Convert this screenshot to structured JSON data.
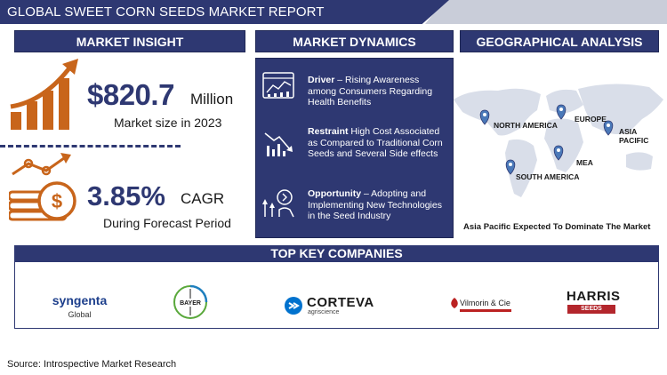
{
  "header": {
    "title": "GLOBAL SWEET CORN SEEDS MARKET REPORT"
  },
  "sections": {
    "insight": "MARKET INSIGHT",
    "dynamics": "MARKET DYNAMICS",
    "geo": "GEOGRAPHICAL ANALYSIS",
    "companies": "TOP KEY COMPANIES"
  },
  "insight": {
    "market_value": "$820.7",
    "market_unit": "Million",
    "market_caption": "Market size in 2023",
    "cagr_value": "3.85%",
    "cagr_unit": "CAGR",
    "cagr_caption": "During Forecast Period"
  },
  "dynamics": {
    "driver": {
      "label": "Driver",
      "text": " – Rising Awareness among Consumers Regarding Health Benefits"
    },
    "restraint": {
      "label": "Restraint",
      "text": " High Cost Associated as Compared to Traditional Corn Seeds and Several Side effects"
    },
    "opportunity": {
      "label": "Opportunity",
      "text": " – Adopting and Implementing New Technologies in the Seed Industry"
    }
  },
  "geo": {
    "regions": [
      "NORTH AMERICA",
      "EUROPE",
      "ASIA PACIFIC",
      "MEA",
      "SOUTH AMERICA"
    ],
    "caption": "Asia Pacific Expected To Dominate The Market"
  },
  "companies": {
    "syngenta": {
      "name": "syngenta",
      "sub": "Global"
    },
    "bayer": {
      "name": "BAYER"
    },
    "corteva": {
      "name": "CORTEVA",
      "sub": "agriscience"
    },
    "vilmorin": {
      "name": "Vilmorin & Cie"
    },
    "harris": {
      "name": "HARRIS",
      "sub": "SEEDS"
    }
  },
  "footer": {
    "source": "Source: Introspective Market Research"
  },
  "colors": {
    "navy": "#2e3872",
    "orange": "#c8651b",
    "pin": "#4a78b8",
    "map": "#d9dee9"
  }
}
